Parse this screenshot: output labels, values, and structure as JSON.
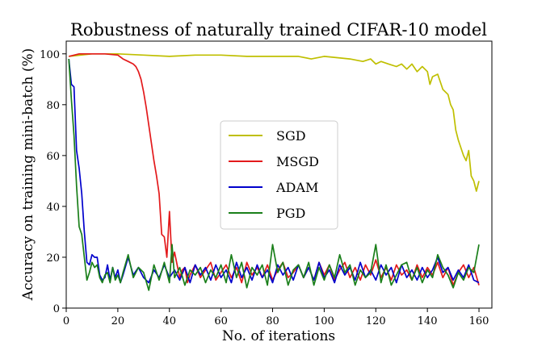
{
  "chart_data": {
    "type": "line",
    "title": "Robustness of naturally trained CIFAR-10 model",
    "xlabel": "No. of iterations",
    "ylabel": "Accuracy on training mini-batch (%)",
    "xlim": [
      0,
      165
    ],
    "ylim": [
      0,
      105
    ],
    "xticks": [
      "0",
      "20",
      "40",
      "60",
      "80",
      "100",
      "120",
      "140",
      "160"
    ],
    "yticks": [
      "0",
      "20",
      "40",
      "60",
      "80",
      "100"
    ],
    "legend_position": "center",
    "series": [
      {
        "name": "SGD",
        "color": "#bfbf00",
        "points": [
          [
            1,
            99
          ],
          [
            10,
            100
          ],
          [
            20,
            100
          ],
          [
            30,
            99.5
          ],
          [
            40,
            99
          ],
          [
            50,
            99.5
          ],
          [
            60,
            99.5
          ],
          [
            70,
            99
          ],
          [
            80,
            99
          ],
          [
            90,
            99
          ],
          [
            95,
            98
          ],
          [
            100,
            99
          ],
          [
            105,
            98.5
          ],
          [
            110,
            98
          ],
          [
            115,
            97
          ],
          [
            118,
            98
          ],
          [
            120,
            96
          ],
          [
            122,
            97
          ],
          [
            125,
            96
          ],
          [
            128,
            95
          ],
          [
            130,
            96
          ],
          [
            132,
            94
          ],
          [
            134,
            96
          ],
          [
            136,
            93
          ],
          [
            138,
            95
          ],
          [
            140,
            93
          ],
          [
            141,
            88
          ],
          [
            142,
            91
          ],
          [
            144,
            92
          ],
          [
            145,
            89
          ],
          [
            146,
            86
          ],
          [
            148,
            84
          ],
          [
            149,
            80
          ],
          [
            150,
            78
          ],
          [
            151,
            70
          ],
          [
            152,
            66
          ],
          [
            153,
            63
          ],
          [
            154,
            60
          ],
          [
            155,
            58
          ],
          [
            156,
            62
          ],
          [
            157,
            52
          ],
          [
            158,
            50
          ],
          [
            159,
            46
          ],
          [
            160,
            50
          ]
        ]
      },
      {
        "name": "MSGD",
        "color": "#e31a1c",
        "points": [
          [
            1,
            99
          ],
          [
            5,
            100
          ],
          [
            10,
            100
          ],
          [
            15,
            100
          ],
          [
            20,
            99.5
          ],
          [
            22,
            98
          ],
          [
            24,
            97
          ],
          [
            26,
            96
          ],
          [
            27,
            95
          ],
          [
            28,
            93
          ],
          [
            29,
            90
          ],
          [
            30,
            85
          ],
          [
            31,
            79
          ],
          [
            32,
            72
          ],
          [
            33,
            65
          ],
          [
            34,
            58
          ],
          [
            35,
            52
          ],
          [
            36,
            45
          ],
          [
            37,
            29
          ],
          [
            38,
            28
          ],
          [
            39,
            20
          ],
          [
            40,
            38
          ],
          [
            41,
            18
          ],
          [
            42,
            22
          ],
          [
            43,
            17
          ],
          [
            44,
            12
          ],
          [
            45,
            15
          ],
          [
            46,
            16
          ],
          [
            47,
            10
          ],
          [
            48,
            13
          ],
          [
            50,
            17
          ],
          [
            52,
            12
          ],
          [
            54,
            15
          ],
          [
            56,
            18
          ],
          [
            58,
            11
          ],
          [
            60,
            14
          ],
          [
            62,
            17
          ],
          [
            64,
            12
          ],
          [
            66,
            16
          ],
          [
            68,
            10
          ],
          [
            70,
            18
          ],
          [
            72,
            13
          ],
          [
            74,
            16
          ],
          [
            76,
            12
          ],
          [
            78,
            17
          ],
          [
            80,
            11
          ],
          [
            82,
            15
          ],
          [
            84,
            18
          ],
          [
            86,
            12
          ],
          [
            88,
            14
          ],
          [
            90,
            17
          ],
          [
            92,
            12
          ],
          [
            94,
            16
          ],
          [
            96,
            11
          ],
          [
            98,
            18
          ],
          [
            100,
            13
          ],
          [
            102,
            17
          ],
          [
            104,
            11
          ],
          [
            106,
            15
          ],
          [
            108,
            18
          ],
          [
            110,
            12
          ],
          [
            112,
            16
          ],
          [
            114,
            11
          ],
          [
            116,
            17
          ],
          [
            118,
            13
          ],
          [
            120,
            19
          ],
          [
            122,
            12
          ],
          [
            124,
            16
          ],
          [
            126,
            11
          ],
          [
            128,
            17
          ],
          [
            130,
            13
          ],
          [
            132,
            15
          ],
          [
            134,
            11
          ],
          [
            136,
            17
          ],
          [
            138,
            12
          ],
          [
            140,
            16
          ],
          [
            142,
            13
          ],
          [
            144,
            18
          ],
          [
            146,
            12
          ],
          [
            148,
            16
          ],
          [
            150,
            9
          ],
          [
            152,
            14
          ],
          [
            154,
            17
          ],
          [
            156,
            12
          ],
          [
            158,
            16
          ],
          [
            160,
            9
          ]
        ]
      },
      {
        "name": "ADAM",
        "color": "#0000cc",
        "points": [
          [
            1,
            98
          ],
          [
            2,
            88
          ],
          [
            3,
            87
          ],
          [
            4,
            62
          ],
          [
            5,
            55
          ],
          [
            6,
            45
          ],
          [
            7,
            30
          ],
          [
            8,
            18
          ],
          [
            9,
            17
          ],
          [
            10,
            21
          ],
          [
            11,
            20
          ],
          [
            12,
            20
          ],
          [
            13,
            13
          ],
          [
            14,
            11
          ],
          [
            15,
            12
          ],
          [
            16,
            17
          ],
          [
            17,
            11
          ],
          [
            18,
            16
          ],
          [
            19,
            12
          ],
          [
            20,
            15
          ],
          [
            21,
            10
          ],
          [
            22,
            13
          ],
          [
            24,
            20
          ],
          [
            26,
            13
          ],
          [
            28,
            16
          ],
          [
            30,
            12
          ],
          [
            32,
            10
          ],
          [
            34,
            15
          ],
          [
            36,
            12
          ],
          [
            38,
            17
          ],
          [
            40,
            12
          ],
          [
            42,
            15
          ],
          [
            44,
            11
          ],
          [
            46,
            16
          ],
          [
            48,
            10
          ],
          [
            50,
            17
          ],
          [
            52,
            13
          ],
          [
            54,
            16
          ],
          [
            56,
            11
          ],
          [
            58,
            17
          ],
          [
            60,
            12
          ],
          [
            62,
            15
          ],
          [
            64,
            10
          ],
          [
            66,
            18
          ],
          [
            68,
            12
          ],
          [
            70,
            16
          ],
          [
            72,
            11
          ],
          [
            74,
            17
          ],
          [
            76,
            12
          ],
          [
            78,
            15
          ],
          [
            80,
            10
          ],
          [
            82,
            17
          ],
          [
            84,
            13
          ],
          [
            86,
            16
          ],
          [
            88,
            11
          ],
          [
            90,
            17
          ],
          [
            92,
            12
          ],
          [
            94,
            16
          ],
          [
            96,
            11
          ],
          [
            98,
            18
          ],
          [
            100,
            12
          ],
          [
            102,
            15
          ],
          [
            104,
            10
          ],
          [
            106,
            17
          ],
          [
            108,
            13
          ],
          [
            110,
            16
          ],
          [
            112,
            11
          ],
          [
            114,
            18
          ],
          [
            116,
            12
          ],
          [
            118,
            15
          ],
          [
            120,
            11
          ],
          [
            122,
            17
          ],
          [
            124,
            13
          ],
          [
            126,
            16
          ],
          [
            128,
            10
          ],
          [
            130,
            17
          ],
          [
            132,
            12
          ],
          [
            134,
            15
          ],
          [
            136,
            11
          ],
          [
            138,
            16
          ],
          [
            140,
            12
          ],
          [
            142,
            15
          ],
          [
            144,
            20
          ],
          [
            146,
            14
          ],
          [
            148,
            16
          ],
          [
            150,
            11
          ],
          [
            152,
            15
          ],
          [
            154,
            12
          ],
          [
            156,
            17
          ],
          [
            158,
            11
          ],
          [
            160,
            10
          ]
        ]
      },
      {
        "name": "PGD",
        "color": "#1a7f1a",
        "points": [
          [
            1,
            98
          ],
          [
            2,
            82
          ],
          [
            3,
            68
          ],
          [
            4,
            48
          ],
          [
            5,
            32
          ],
          [
            6,
            29
          ],
          [
            7,
            20
          ],
          [
            8,
            11
          ],
          [
            9,
            14
          ],
          [
            10,
            18
          ],
          [
            11,
            16
          ],
          [
            12,
            17
          ],
          [
            13,
            12
          ],
          [
            14,
            10
          ],
          [
            15,
            13
          ],
          [
            16,
            14
          ],
          [
            17,
            10
          ],
          [
            18,
            16
          ],
          [
            19,
            11
          ],
          [
            20,
            13
          ],
          [
            21,
            10
          ],
          [
            22,
            14
          ],
          [
            24,
            21
          ],
          [
            26,
            12
          ],
          [
            28,
            16
          ],
          [
            30,
            14
          ],
          [
            32,
            7
          ],
          [
            34,
            17
          ],
          [
            36,
            11
          ],
          [
            38,
            18
          ],
          [
            40,
            10
          ],
          [
            41,
            25
          ],
          [
            42,
            12
          ],
          [
            44,
            16
          ],
          [
            46,
            9
          ],
          [
            48,
            15
          ],
          [
            50,
            13
          ],
          [
            52,
            16
          ],
          [
            54,
            10
          ],
          [
            56,
            15
          ],
          [
            58,
            12
          ],
          [
            60,
            17
          ],
          [
            62,
            10
          ],
          [
            64,
            21
          ],
          [
            66,
            12
          ],
          [
            68,
            18
          ],
          [
            70,
            8
          ],
          [
            72,
            16
          ],
          [
            74,
            13
          ],
          [
            76,
            17
          ],
          [
            78,
            9
          ],
          [
            80,
            25
          ],
          [
            82,
            14
          ],
          [
            84,
            18
          ],
          [
            86,
            9
          ],
          [
            88,
            15
          ],
          [
            90,
            17
          ],
          [
            92,
            12
          ],
          [
            94,
            18
          ],
          [
            96,
            9
          ],
          [
            98,
            16
          ],
          [
            100,
            11
          ],
          [
            102,
            17
          ],
          [
            104,
            12
          ],
          [
            106,
            21
          ],
          [
            108,
            14
          ],
          [
            110,
            17
          ],
          [
            112,
            9
          ],
          [
            114,
            15
          ],
          [
            116,
            12
          ],
          [
            118,
            14
          ],
          [
            120,
            25
          ],
          [
            122,
            10
          ],
          [
            124,
            17
          ],
          [
            126,
            9
          ],
          [
            128,
            13
          ],
          [
            130,
            17
          ],
          [
            132,
            18
          ],
          [
            134,
            11
          ],
          [
            136,
            16
          ],
          [
            138,
            10
          ],
          [
            140,
            15
          ],
          [
            142,
            12
          ],
          [
            144,
            21
          ],
          [
            146,
            16
          ],
          [
            148,
            13
          ],
          [
            150,
            8
          ],
          [
            152,
            14
          ],
          [
            154,
            11
          ],
          [
            156,
            16
          ],
          [
            158,
            14
          ],
          [
            160,
            25
          ]
        ]
      }
    ]
  }
}
